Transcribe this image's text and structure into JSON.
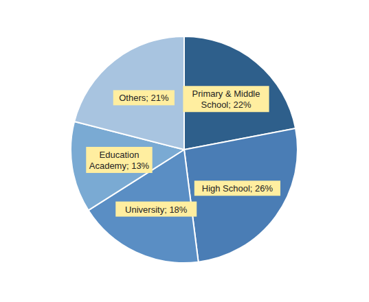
{
  "chart_data": {
    "type": "pie",
    "categories": [
      "Primary & Middle\nSchool; 22%",
      "High School; 26%",
      "University; 18%",
      "Education\nAcademy; 13%",
      "Others; 21%"
    ],
    "values": [
      22,
      26,
      18,
      13,
      21
    ],
    "colors": [
      "#2E5F8B",
      "#4A7DB5",
      "#5A8EC4",
      "#7AAAD3",
      "#A8C4E0"
    ]
  }
}
